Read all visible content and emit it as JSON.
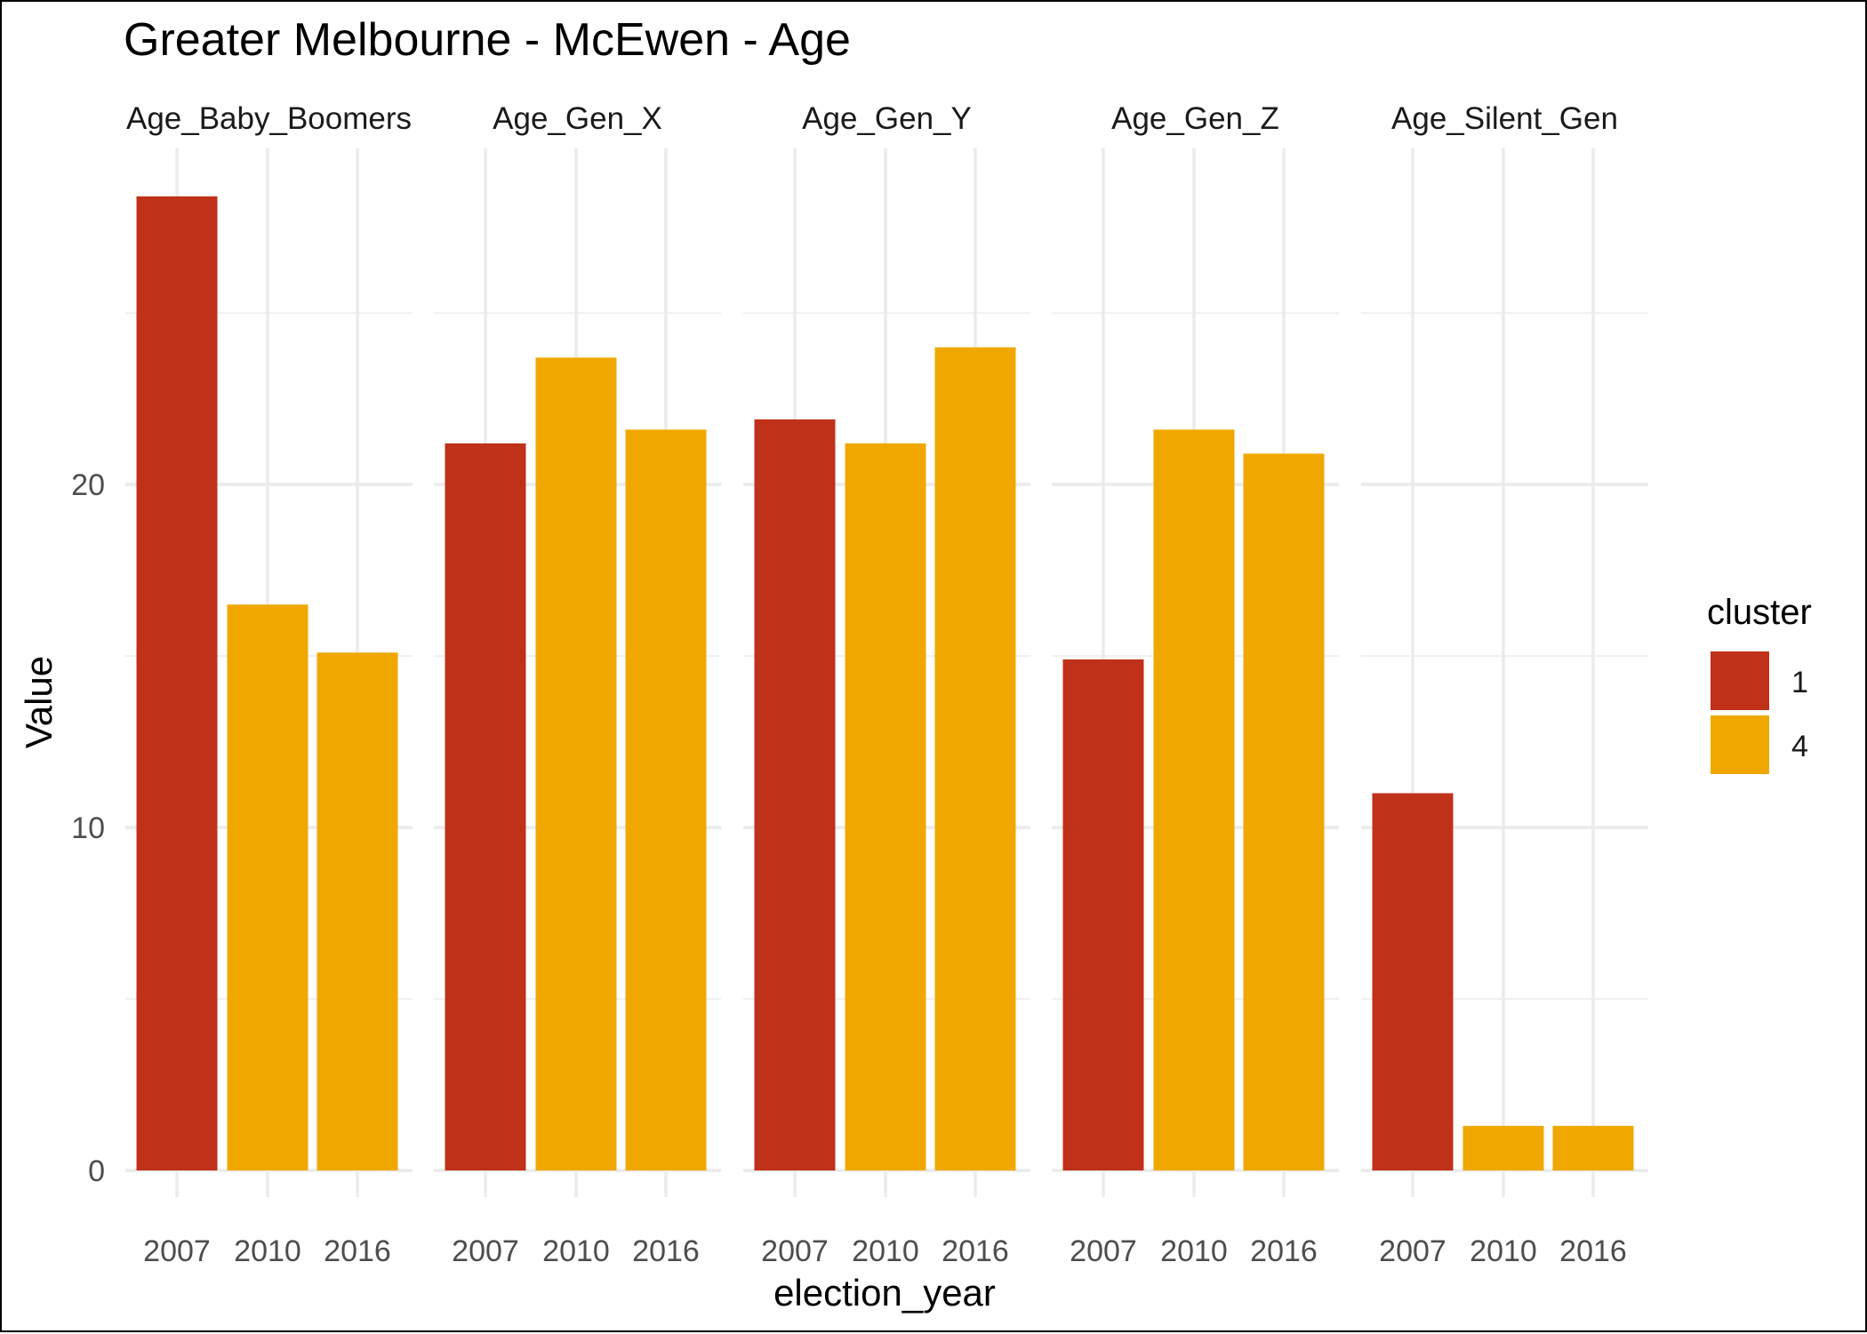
{
  "chart_data": {
    "type": "bar",
    "title": "Greater Melbourne - McEwen - Age",
    "xlabel": "election_year",
    "ylabel": "Value",
    "facets": [
      "Age_Baby_Boomers",
      "Age_Gen_X",
      "Age_Gen_Y",
      "Age_Gen_Z",
      "Age_Silent_Gen"
    ],
    "categories": [
      "2007",
      "2010",
      "2016"
    ],
    "ylim": [
      0,
      28.4
    ],
    "yticks": [
      0,
      10,
      20
    ],
    "grid": true,
    "legend": {
      "title": "cluster",
      "position": "right",
      "entries": [
        {
          "label": "1",
          "color": "#C0311A"
        },
        {
          "label": "4",
          "color": "#F0A800"
        }
      ]
    },
    "series": [
      {
        "facet": "Age_Baby_Boomers",
        "values": [
          28.4,
          16.5,
          15.1
        ],
        "cluster": [
          "1",
          "4",
          "4"
        ]
      },
      {
        "facet": "Age_Gen_X",
        "values": [
          21.2,
          23.7,
          21.6
        ],
        "cluster": [
          "1",
          "4",
          "4"
        ]
      },
      {
        "facet": "Age_Gen_Y",
        "values": [
          21.9,
          21.2,
          24.0
        ],
        "cluster": [
          "1",
          "4",
          "4"
        ]
      },
      {
        "facet": "Age_Gen_Z",
        "values": [
          14.9,
          21.6,
          20.9
        ],
        "cluster": [
          "1",
          "4",
          "4"
        ]
      },
      {
        "facet": "Age_Silent_Gen",
        "values": [
          11.0,
          1.3,
          1.3
        ],
        "cluster": [
          "1",
          "4",
          "4"
        ]
      }
    ]
  }
}
